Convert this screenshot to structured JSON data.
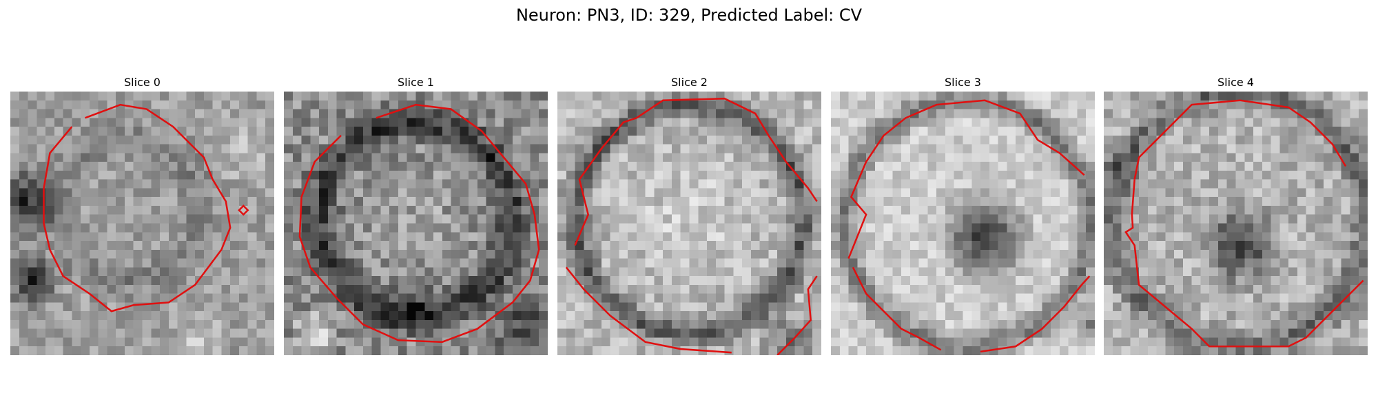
{
  "figure": {
    "suptitle": "Neuron: PN3, ID: 329, Predicted Label: CV",
    "contour_color": "#e01010"
  },
  "panels": [
    {
      "title": "Slice 0",
      "variant": 0
    },
    {
      "title": "Slice 1",
      "variant": 1
    },
    {
      "title": "Slice 2",
      "variant": 2
    },
    {
      "title": "Slice 3",
      "variant": 3
    },
    {
      "title": "Slice 4",
      "variant": 4
    }
  ]
}
